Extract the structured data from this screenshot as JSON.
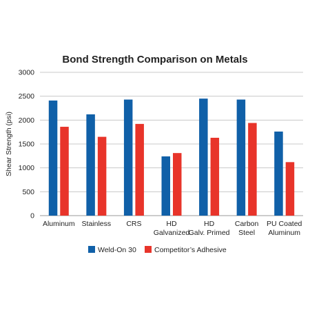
{
  "colors": {
    "weld_on": "#1060a8",
    "competitor": "#e8342a",
    "grid": "#c8c8c8",
    "text": "#222222"
  },
  "chart_data": {
    "type": "bar",
    "title": "Bond Strength Comparison on Metals",
    "xlabel": "",
    "ylabel": "Shear Strength (psi)",
    "ylim": [
      0,
      3000
    ],
    "yticks": [
      0,
      500,
      1000,
      1500,
      2000,
      2500,
      3000
    ],
    "grid": true,
    "legend_position": "bottom",
    "categories": [
      [
        "Aluminum"
      ],
      [
        "Stainless"
      ],
      [
        "CRS"
      ],
      [
        "HD",
        "Galvanized"
      ],
      [
        "HD",
        "Galv. Primed"
      ],
      [
        "Carbon",
        "Steel"
      ],
      [
        "PU Coated",
        "Aluminum"
      ]
    ],
    "series": [
      {
        "name": "Weld-On 30",
        "color": "#1060a8",
        "values": [
          2410,
          2120,
          2430,
          1240,
          2450,
          2430,
          1760
        ]
      },
      {
        "name": "Competitor’s Adhesive",
        "color": "#e8342a",
        "values": [
          1860,
          1650,
          1920,
          1310,
          1630,
          1940,
          1120
        ]
      }
    ]
  }
}
